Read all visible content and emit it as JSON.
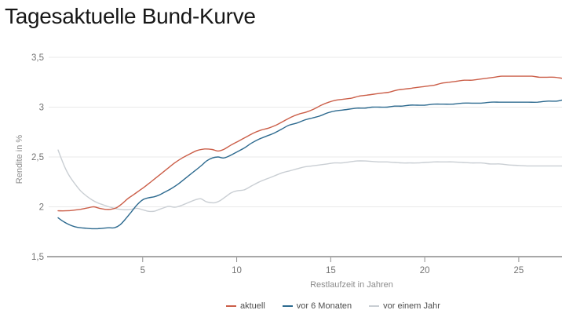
{
  "header": {
    "title": "Tagesaktuelle Bund-Kurve"
  },
  "chart_data": {
    "type": "line",
    "title": "Tagesaktuelle Bund-Kurve",
    "xlabel": "Restlaufzeit in Jahren",
    "ylabel": "Rendite in %",
    "xlim": [
      0,
      27.3
    ],
    "ylim": [
      1.5,
      3.5
    ],
    "x_ticks": [
      5,
      10,
      15,
      20,
      25
    ],
    "x_tick_labels": [
      "5",
      "10",
      "15",
      "20",
      "25"
    ],
    "y_ticks": [
      3.5,
      3.0,
      2.5,
      2.0,
      1.5
    ],
    "y_tick_labels": [
      "3,5",
      "3",
      "2,5",
      "2",
      "1,5"
    ],
    "grid": "horizontal-only",
    "legend_position": "bottom-center",
    "colors": {
      "title_text": "#171717",
      "gridline": "#e9e9e9",
      "axis_line": "#a8a8a8",
      "tick_mark": "#8f8f8f",
      "tick_text": "#737373",
      "axis_title_text": "#8c8c8c",
      "legend_text": "#4d4d4d",
      "background": "#ffffff"
    },
    "series": [
      {
        "name": "aktuell",
        "color": "#cb5e48",
        "points": [
          [
            0.5,
            1.96
          ],
          [
            0.9,
            1.96
          ],
          [
            1.3,
            1.965
          ],
          [
            1.7,
            1.975
          ],
          [
            2.1,
            1.99
          ],
          [
            2.4,
            2.0
          ],
          [
            2.7,
            1.985
          ],
          [
            3.0,
            1.975
          ],
          [
            3.3,
            1.975
          ],
          [
            3.6,
            1.99
          ],
          [
            3.9,
            2.03
          ],
          [
            4.2,
            2.08
          ],
          [
            4.5,
            2.12
          ],
          [
            4.8,
            2.16
          ],
          [
            5.1,
            2.2
          ],
          [
            5.5,
            2.26
          ],
          [
            5.9,
            2.32
          ],
          [
            6.3,
            2.38
          ],
          [
            6.7,
            2.44
          ],
          [
            7.1,
            2.49
          ],
          [
            7.5,
            2.53
          ],
          [
            7.9,
            2.565
          ],
          [
            8.3,
            2.58
          ],
          [
            8.7,
            2.575
          ],
          [
            9.0,
            2.56
          ],
          [
            9.3,
            2.575
          ],
          [
            9.7,
            2.62
          ],
          [
            10.1,
            2.66
          ],
          [
            10.5,
            2.7
          ],
          [
            10.9,
            2.74
          ],
          [
            11.3,
            2.77
          ],
          [
            11.7,
            2.79
          ],
          [
            12.1,
            2.82
          ],
          [
            12.5,
            2.86
          ],
          [
            12.9,
            2.9
          ],
          [
            13.3,
            2.93
          ],
          [
            13.7,
            2.95
          ],
          [
            14.1,
            2.98
          ],
          [
            14.5,
            3.02
          ],
          [
            14.9,
            3.05
          ],
          [
            15.3,
            3.07
          ],
          [
            15.7,
            3.08
          ],
          [
            16.1,
            3.09
          ],
          [
            16.5,
            3.11
          ],
          [
            16.9,
            3.12
          ],
          [
            17.3,
            3.13
          ],
          [
            17.7,
            3.14
          ],
          [
            18.1,
            3.15
          ],
          [
            18.5,
            3.17
          ],
          [
            18.9,
            3.18
          ],
          [
            19.3,
            3.19
          ],
          [
            19.7,
            3.2
          ],
          [
            20.1,
            3.21
          ],
          [
            20.5,
            3.22
          ],
          [
            20.9,
            3.24
          ],
          [
            21.3,
            3.25
          ],
          [
            21.7,
            3.26
          ],
          [
            22.1,
            3.27
          ],
          [
            22.5,
            3.27
          ],
          [
            22.9,
            3.28
          ],
          [
            23.3,
            3.29
          ],
          [
            23.7,
            3.3
          ],
          [
            24.1,
            3.31
          ],
          [
            24.5,
            3.31
          ],
          [
            24.9,
            3.31
          ],
          [
            25.3,
            3.31
          ],
          [
            25.7,
            3.31
          ],
          [
            26.1,
            3.3
          ],
          [
            26.5,
            3.3
          ],
          [
            26.9,
            3.3
          ],
          [
            27.3,
            3.29
          ]
        ]
      },
      {
        "name": "vor 6 Monaten",
        "color": "#2d6a8f",
        "points": [
          [
            0.5,
            1.89
          ],
          [
            0.8,
            1.85
          ],
          [
            1.1,
            1.82
          ],
          [
            1.4,
            1.8
          ],
          [
            1.7,
            1.79
          ],
          [
            2.0,
            1.785
          ],
          [
            2.3,
            1.78
          ],
          [
            2.6,
            1.78
          ],
          [
            2.9,
            1.785
          ],
          [
            3.2,
            1.79
          ],
          [
            3.5,
            1.79
          ],
          [
            3.8,
            1.82
          ],
          [
            4.1,
            1.88
          ],
          [
            4.4,
            1.95
          ],
          [
            4.7,
            2.02
          ],
          [
            5.0,
            2.07
          ],
          [
            5.3,
            2.09
          ],
          [
            5.6,
            2.1
          ],
          [
            5.9,
            2.12
          ],
          [
            6.2,
            2.15
          ],
          [
            6.5,
            2.18
          ],
          [
            6.9,
            2.23
          ],
          [
            7.3,
            2.29
          ],
          [
            7.7,
            2.35
          ],
          [
            8.1,
            2.41
          ],
          [
            8.4,
            2.46
          ],
          [
            8.7,
            2.49
          ],
          [
            9.0,
            2.5
          ],
          [
            9.3,
            2.49
          ],
          [
            9.6,
            2.51
          ],
          [
            10.0,
            2.55
          ],
          [
            10.4,
            2.59
          ],
          [
            10.8,
            2.64
          ],
          [
            11.2,
            2.68
          ],
          [
            11.6,
            2.71
          ],
          [
            12.0,
            2.74
          ],
          [
            12.4,
            2.78
          ],
          [
            12.8,
            2.82
          ],
          [
            13.2,
            2.84
          ],
          [
            13.6,
            2.87
          ],
          [
            14.0,
            2.89
          ],
          [
            14.4,
            2.91
          ],
          [
            14.8,
            2.94
          ],
          [
            15.2,
            2.96
          ],
          [
            15.6,
            2.97
          ],
          [
            16.0,
            2.98
          ],
          [
            16.4,
            2.99
          ],
          [
            16.8,
            2.99
          ],
          [
            17.2,
            3.0
          ],
          [
            17.6,
            3.0
          ],
          [
            18.0,
            3.0
          ],
          [
            18.4,
            3.01
          ],
          [
            18.8,
            3.01
          ],
          [
            19.2,
            3.02
          ],
          [
            19.6,
            3.02
          ],
          [
            20.0,
            3.02
          ],
          [
            20.5,
            3.03
          ],
          [
            21.0,
            3.03
          ],
          [
            21.5,
            3.03
          ],
          [
            22.0,
            3.04
          ],
          [
            22.5,
            3.04
          ],
          [
            23.0,
            3.04
          ],
          [
            23.5,
            3.05
          ],
          [
            24.0,
            3.05
          ],
          [
            24.5,
            3.05
          ],
          [
            25.0,
            3.05
          ],
          [
            25.5,
            3.05
          ],
          [
            26.0,
            3.05
          ],
          [
            26.5,
            3.06
          ],
          [
            27.0,
            3.06
          ],
          [
            27.3,
            3.07
          ]
        ]
      },
      {
        "name": "vor einem Jahr",
        "color": "#c9ced3",
        "points": [
          [
            0.5,
            2.57
          ],
          [
            0.7,
            2.47
          ],
          [
            0.9,
            2.38
          ],
          [
            1.1,
            2.31
          ],
          [
            1.4,
            2.23
          ],
          [
            1.7,
            2.16
          ],
          [
            2.0,
            2.11
          ],
          [
            2.3,
            2.07
          ],
          [
            2.6,
            2.04
          ],
          [
            2.9,
            2.02
          ],
          [
            3.2,
            2.0
          ],
          [
            3.5,
            1.985
          ],
          [
            3.8,
            1.975
          ],
          [
            4.1,
            1.97
          ],
          [
            4.4,
            1.975
          ],
          [
            4.7,
            1.985
          ],
          [
            5.0,
            1.97
          ],
          [
            5.3,
            1.955
          ],
          [
            5.6,
            1.955
          ],
          [
            5.9,
            1.975
          ],
          [
            6.2,
            1.995
          ],
          [
            6.4,
            2.005
          ],
          [
            6.7,
            1.995
          ],
          [
            7.0,
            2.01
          ],
          [
            7.4,
            2.04
          ],
          [
            7.8,
            2.07
          ],
          [
            8.1,
            2.08
          ],
          [
            8.4,
            2.05
          ],
          [
            8.8,
            2.04
          ],
          [
            9.1,
            2.06
          ],
          [
            9.4,
            2.1
          ],
          [
            9.7,
            2.14
          ],
          [
            10.0,
            2.16
          ],
          [
            10.4,
            2.17
          ],
          [
            10.8,
            2.21
          ],
          [
            11.2,
            2.25
          ],
          [
            11.6,
            2.28
          ],
          [
            12.0,
            2.31
          ],
          [
            12.4,
            2.34
          ],
          [
            12.8,
            2.36
          ],
          [
            13.2,
            2.38
          ],
          [
            13.6,
            2.4
          ],
          [
            14.0,
            2.41
          ],
          [
            14.4,
            2.42
          ],
          [
            14.8,
            2.43
          ],
          [
            15.2,
            2.44
          ],
          [
            15.6,
            2.44
          ],
          [
            16.0,
            2.45
          ],
          [
            16.4,
            2.46
          ],
          [
            16.8,
            2.46
          ],
          [
            17.2,
            2.455
          ],
          [
            17.6,
            2.45
          ],
          [
            18.0,
            2.45
          ],
          [
            18.4,
            2.445
          ],
          [
            18.8,
            2.44
          ],
          [
            19.2,
            2.44
          ],
          [
            19.6,
            2.44
          ],
          [
            20.0,
            2.445
          ],
          [
            20.5,
            2.45
          ],
          [
            21.0,
            2.45
          ],
          [
            21.5,
            2.45
          ],
          [
            22.0,
            2.445
          ],
          [
            22.5,
            2.44
          ],
          [
            23.0,
            2.44
          ],
          [
            23.5,
            2.43
          ],
          [
            24.0,
            2.43
          ],
          [
            24.5,
            2.42
          ],
          [
            25.0,
            2.415
          ],
          [
            25.5,
            2.41
          ],
          [
            26.0,
            2.41
          ],
          [
            26.5,
            2.41
          ],
          [
            27.0,
            2.41
          ],
          [
            27.3,
            2.41
          ]
        ]
      }
    ]
  }
}
